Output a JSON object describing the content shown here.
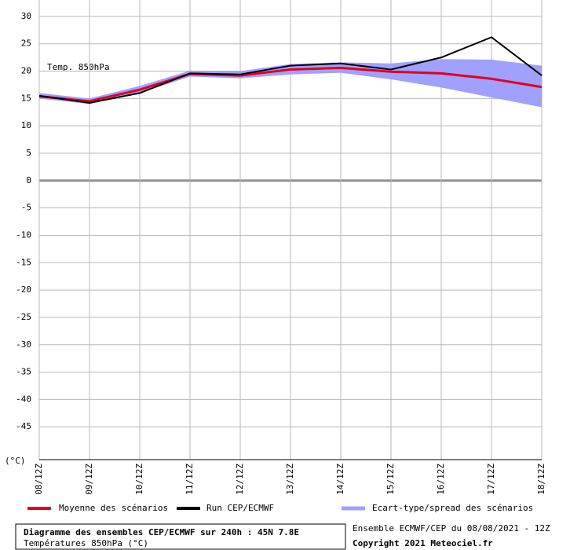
{
  "chart_data": {
    "type": "line",
    "title": "Diagramme des ensembles CEP/ECMWF sur 240h : 45N 7.8E",
    "subtitle": "Températures 850hPa (°C)",
    "annotation": "Temp. 850hPa",
    "y_unit": "(°C)",
    "source": "Ensemble ECMWF/CEP du 08/08/2021 - 12Z",
    "copyright": "Copyright 2021 Meteociel.fr",
    "categories": [
      "08/12Z",
      "09/12Z",
      "10/12Z",
      "11/12Z",
      "12/12Z",
      "13/12Z",
      "14/12Z",
      "15/12Z",
      "16/12Z",
      "17/12Z",
      "18/12Z"
    ],
    "band": {
      "name": "Ecart-type/spread des scénarios",
      "color": "#a0a0ff",
      "upper": [
        16.0,
        15.0,
        17.3,
        20.1,
        20.0,
        21.3,
        21.6,
        21.4,
        22.2,
        22.1,
        21.0
      ],
      "lower": [
        15.0,
        14.0,
        16.0,
        19.0,
        18.7,
        19.4,
        19.7,
        18.5,
        17.0,
        15.2,
        13.4
      ]
    },
    "series": [
      {
        "name": "Moyenne des scénarios",
        "color": "#e00020",
        "values": [
          15.4,
          14.5,
          16.6,
          19.5,
          19.2,
          20.3,
          20.6,
          19.9,
          19.6,
          18.6,
          17.1
        ]
      },
      {
        "name": "Run CEP/ECMWF",
        "color": "#000000",
        "values": [
          15.5,
          14.2,
          16.0,
          19.6,
          19.4,
          21.0,
          21.4,
          20.3,
          22.5,
          26.2,
          19.2
        ]
      }
    ],
    "ylim": [
      -51,
      33
    ],
    "yticks": [
      30,
      25,
      20,
      15,
      10,
      5,
      0,
      -5,
      -10,
      -15,
      -20,
      -25,
      -30,
      -35,
      -40,
      -45
    ],
    "grid": true
  }
}
